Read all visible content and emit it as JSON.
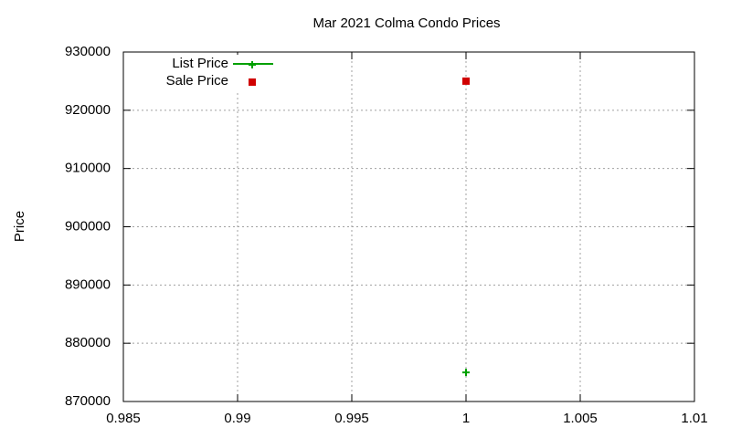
{
  "chart_data": {
    "type": "scatter",
    "title": "Mar 2021 Colma Condo Prices",
    "y_label": "Price",
    "series": [
      {
        "name": "List Price",
        "color": "#00a000",
        "marker": "plus",
        "style": "linespoints",
        "x": [
          1
        ],
        "values": [
          875000
        ]
      },
      {
        "name": "Sale Price",
        "color": "#d00000",
        "marker": "square",
        "style": "points",
        "x": [
          1
        ],
        "values": [
          925000
        ]
      }
    ],
    "xlim": [
      0.985,
      1.01
    ],
    "xticks": [
      0.985,
      0.99,
      0.995,
      1,
      1.005,
      1.01
    ],
    "ylim": [
      870000,
      930000
    ],
    "yticks": [
      870000,
      880000,
      890000,
      900000,
      910000,
      920000,
      930000
    ],
    "grid": true,
    "legend": "top-left"
  }
}
